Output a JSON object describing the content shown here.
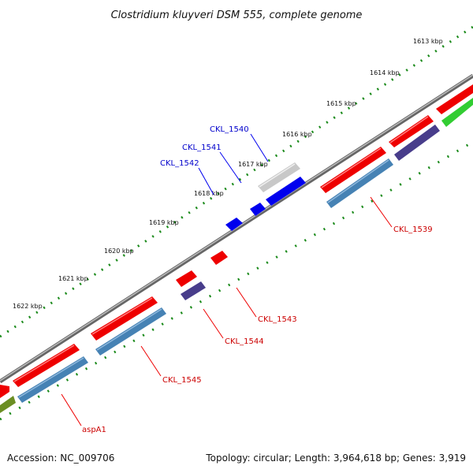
{
  "title": "Clostridium kluyveri DSM 555, complete genome",
  "footer": {
    "accession": "Accession: NC_009706",
    "summary": "Topology: circular; Length: 3,964,618 bp; Genes: 3,919"
  },
  "scale_ticks": [
    "1613 kbp",
    "1614 kbp",
    "1615 kbp",
    "1616 kbp",
    "1617 kbp",
    "1618 kbp",
    "1619 kbp",
    "1620 kbp",
    "1621 kbp",
    "1622 kbp"
  ],
  "gene_labels": [
    {
      "text": "CKL_1540",
      "color": "#0000cc"
    },
    {
      "text": "CKL_1541",
      "color": "#0000cc"
    },
    {
      "text": "CKL_1542",
      "color": "#0000cc"
    },
    {
      "text": "CKL_1539",
      "color": "#cc0000"
    },
    {
      "text": "CKL_1543",
      "color": "#cc0000"
    },
    {
      "text": "CKL_1544",
      "color": "#cc0000"
    },
    {
      "text": "CKL_1545",
      "color": "#cc0000"
    },
    {
      "text": "aspA1",
      "color": "#cc0000"
    }
  ],
  "colors": {
    "backbone": "#808080",
    "ticks": "#1a8a1a",
    "cds_red": "#ee0000",
    "cds_blue": "#0000ee",
    "cds_grey": "#c8c8c8",
    "rna_steelblue": "#4682b4",
    "purple": "#483d8b",
    "green": "#32cd32",
    "olive": "#6b8e23"
  }
}
